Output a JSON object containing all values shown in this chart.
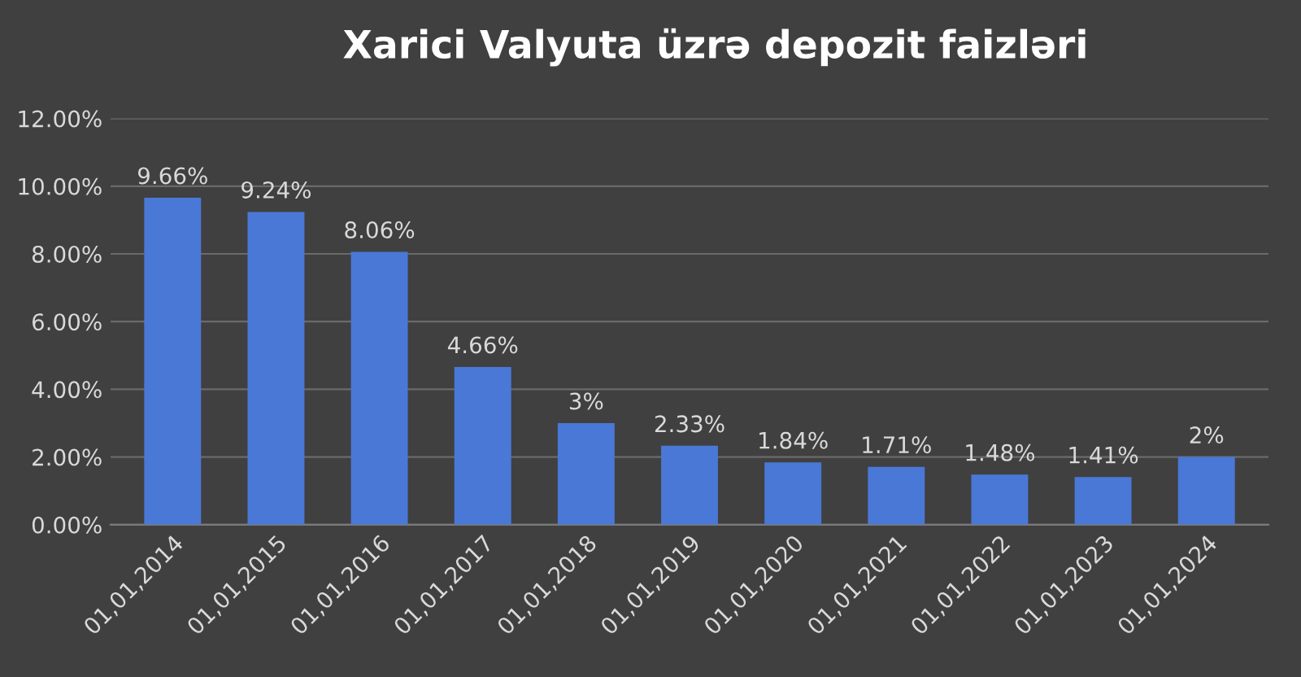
{
  "chart_data": {
    "type": "bar",
    "title": "Xarici Valyuta üzrə depozit faizləri",
    "categories": [
      "01,01,2014",
      "01,01,2015",
      "01,01,2016",
      "01,01,2017",
      "01,01,2018",
      "01,01,2019",
      "01,01,2020",
      "01,01,2021",
      "01,01,2022",
      "01,01,2023",
      "01,01,2024"
    ],
    "values": [
      9.66,
      9.24,
      8.06,
      4.66,
      3,
      2.33,
      1.84,
      1.71,
      1.48,
      1.41,
      2
    ],
    "value_labels": [
      "9.66%",
      "9.24%",
      "8.06%",
      "4.66%",
      "3%",
      "2.33%",
      "1.84%",
      "1.71%",
      "1.48%",
      "1.41%",
      "2%"
    ],
    "color": "#4a78d6",
    "ylim": [
      0,
      12
    ],
    "yticks": [
      {
        "value": 0,
        "label": "0.00%"
      },
      {
        "value": 2,
        "label": "2.00%"
      },
      {
        "value": 4,
        "label": "4.00%"
      },
      {
        "value": 6,
        "label": "6.00%"
      },
      {
        "value": 8,
        "label": "8.00%"
      },
      {
        "value": 10,
        "label": "10.00%"
      },
      {
        "value": 12,
        "label": "12.00%"
      }
    ],
    "grid": "y",
    "legend": false
  }
}
